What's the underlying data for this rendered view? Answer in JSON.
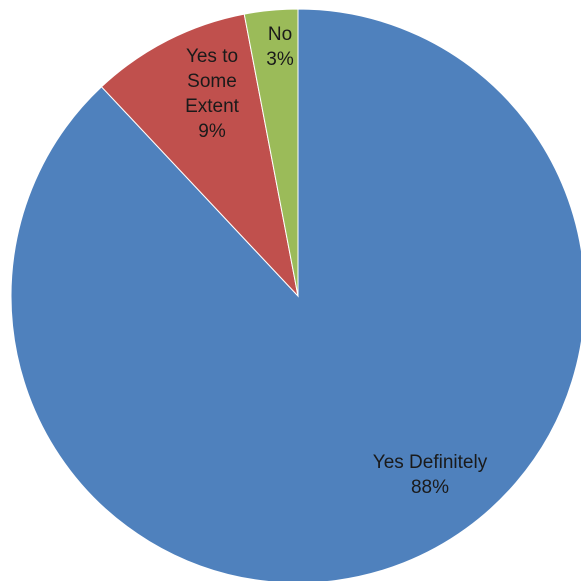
{
  "chart_data": {
    "type": "pie",
    "start_angle_deg": 0,
    "direction": "clockwise",
    "slices": [
      {
        "label": "Yes Definitely",
        "value": 88,
        "percent_label": "88%",
        "color": "#4F81BD"
      },
      {
        "label": "Yes to Some Extent",
        "value": 9,
        "percent_label": "9%",
        "color": "#C0504D"
      },
      {
        "label": "No",
        "value": 3,
        "percent_label": "3%",
        "color": "#9BBB59"
      }
    ],
    "data_labels": [
      {
        "lines": [
          "Yes Definitely",
          "88%"
        ]
      },
      {
        "lines": [
          "Yes to",
          "Some",
          "Extent",
          "9%"
        ]
      },
      {
        "lines": [
          "No",
          "3%"
        ]
      }
    ]
  }
}
